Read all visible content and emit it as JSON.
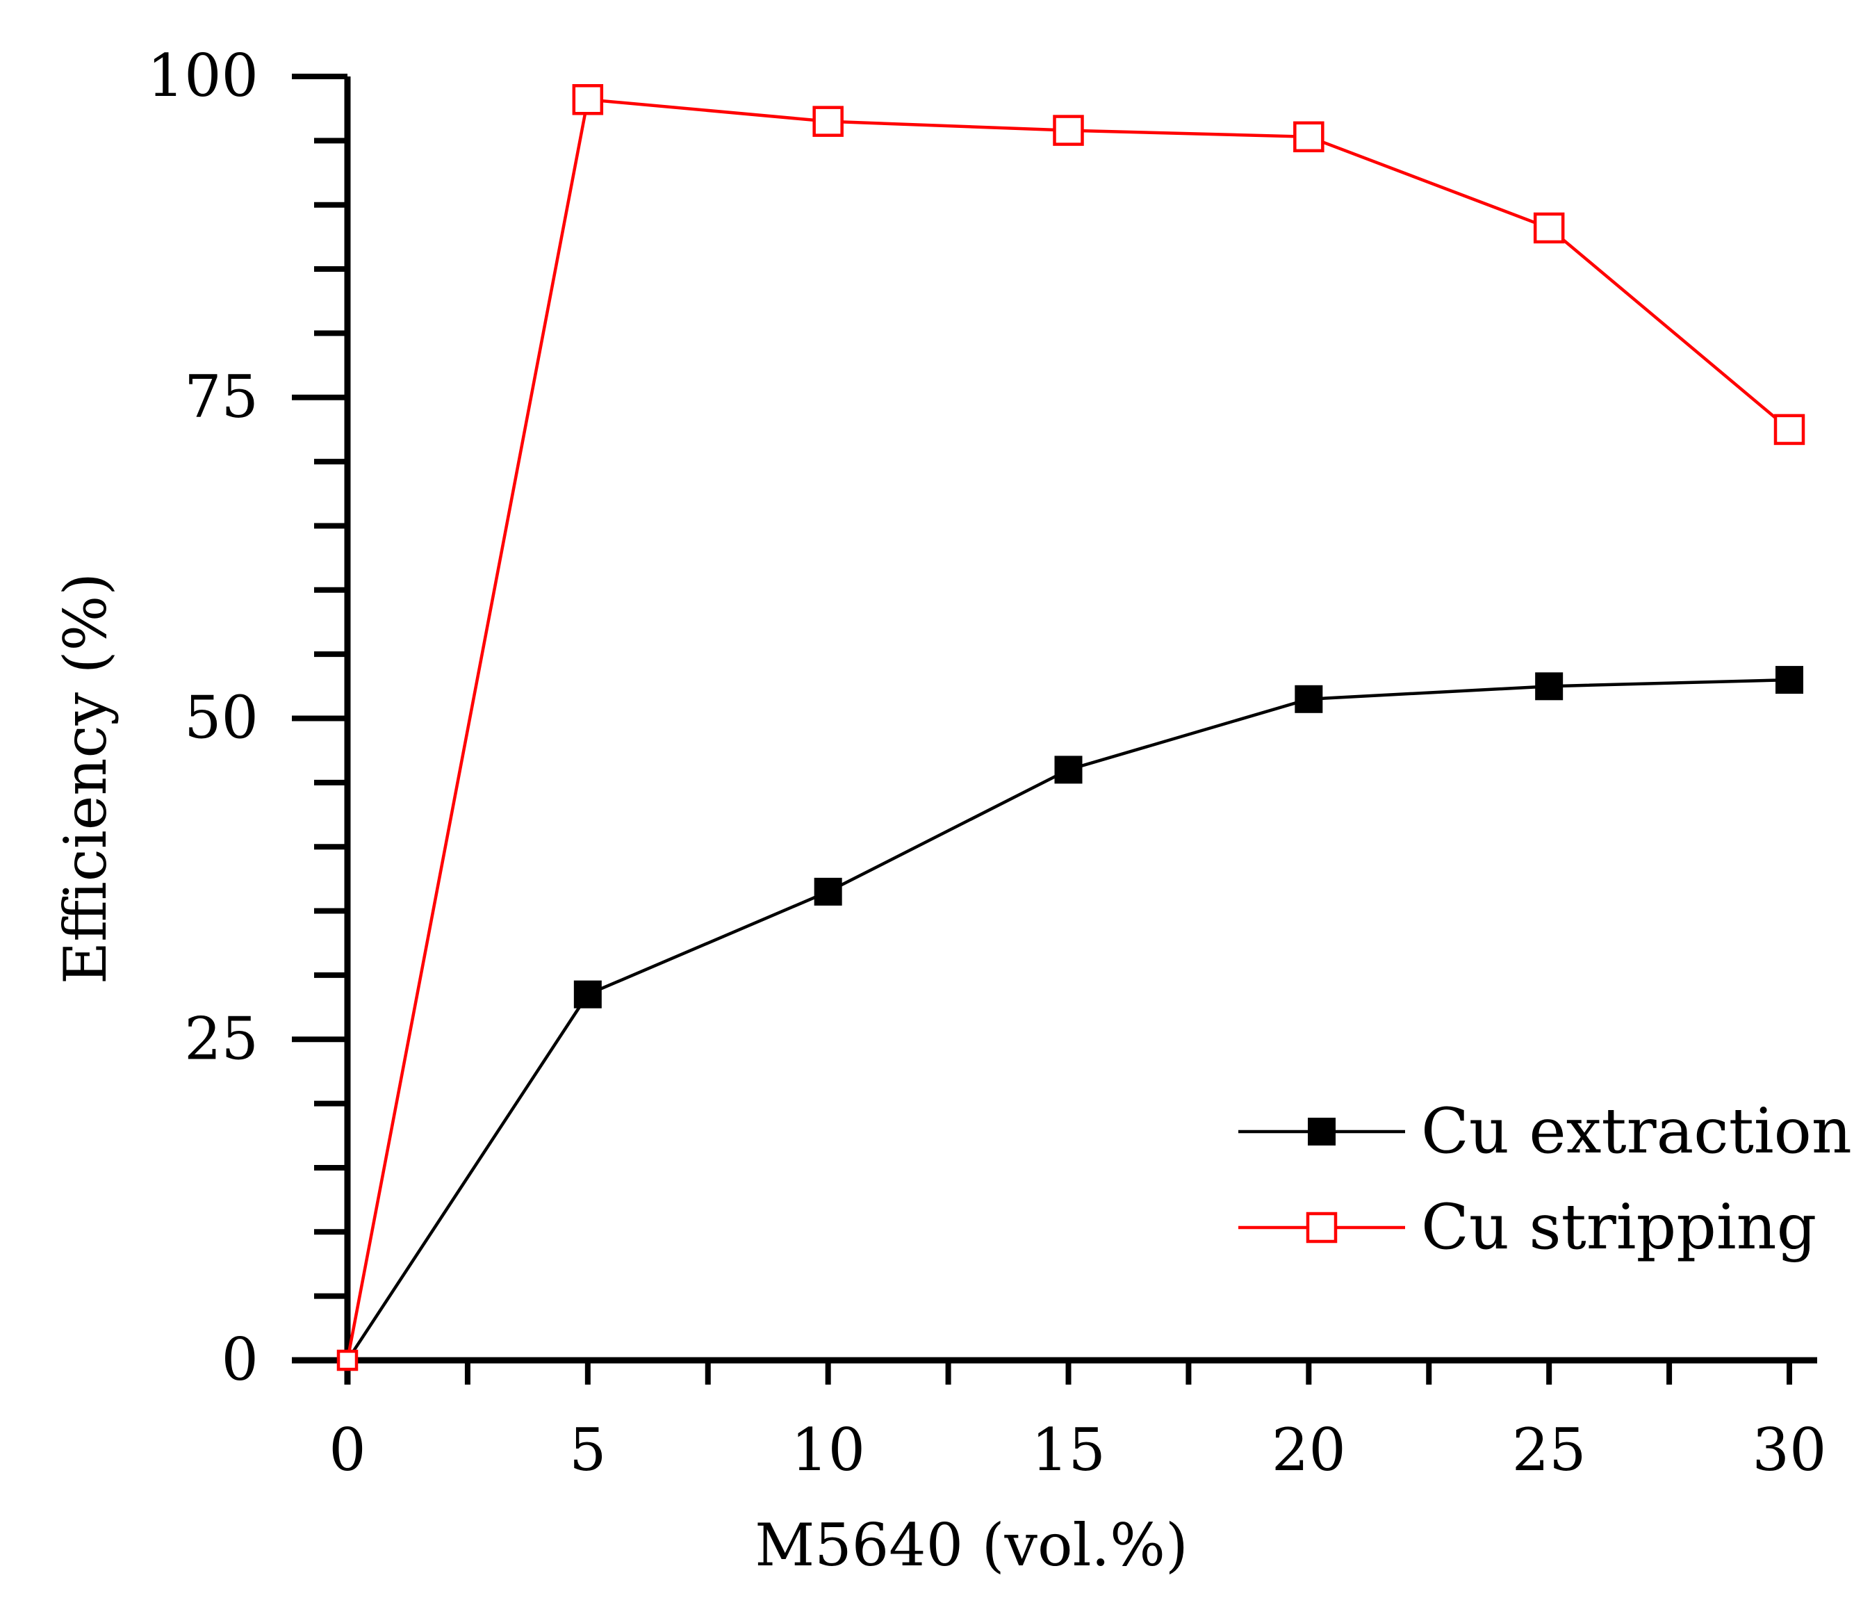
{
  "chart_data": {
    "type": "line",
    "title": "",
    "xlabel": "M5640 (vol.%)",
    "ylabel": "Efficiency (%)",
    "xlim": [
      0,
      30
    ],
    "ylim": [
      0,
      100
    ],
    "xticks": [
      0,
      5,
      10,
      15,
      20,
      25,
      30
    ],
    "yticks": [
      0,
      25,
      50,
      75,
      100
    ],
    "grid": false,
    "legend_position": "bottom-right",
    "x": [
      0,
      5,
      10,
      15,
      20,
      25,
      30
    ],
    "series": [
      {
        "name": "Cu extraction",
        "values": [
          0,
          28.5,
          36.5,
          46,
          51.5,
          52.5,
          53
        ],
        "color": "#000000",
        "marker": "filled-square"
      },
      {
        "name": "Cu stripping",
        "values": [
          0,
          98.2,
          96.5,
          95.8,
          95.3,
          88.2,
          72.5
        ],
        "color": "#ff0000",
        "marker": "open-square"
      }
    ]
  }
}
